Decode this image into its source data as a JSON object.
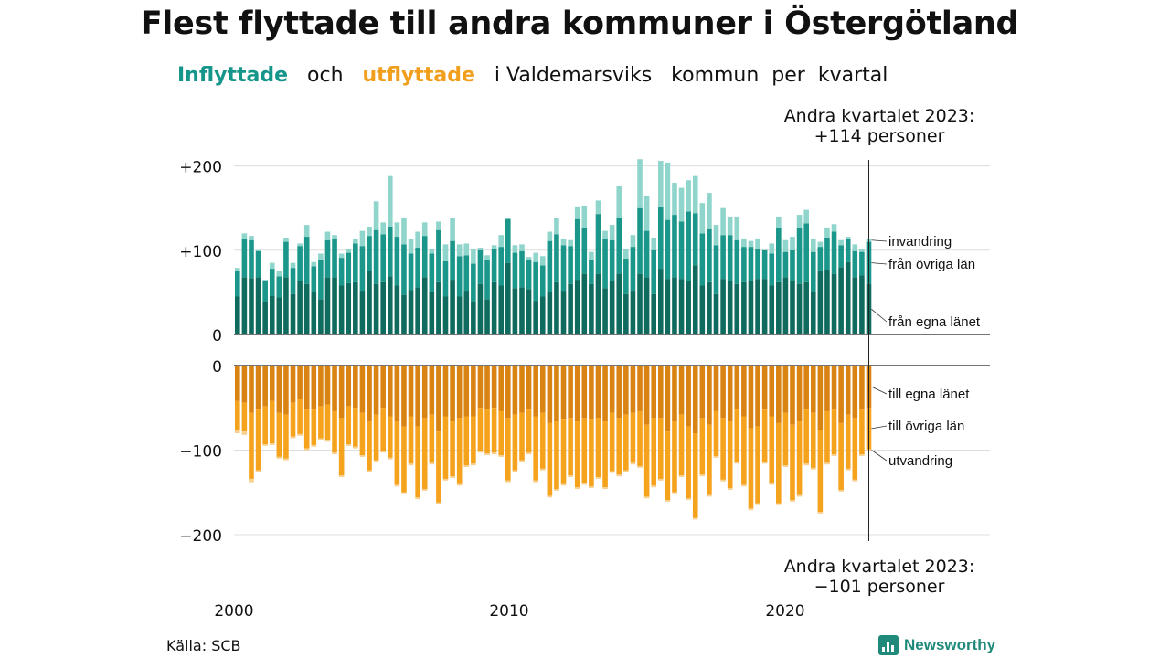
{
  "title": "Flest flyttade till andra kommuner i Östergötland",
  "subtitle": {
    "inflyttade": "Inflyttade",
    "och": "och",
    "utflyttade": "utflyttade",
    "rest": "i Valdemarsviks   kommun  per  kvartal"
  },
  "source": "Källa: SCB",
  "logo_text": "Newsworthy",
  "colors": {
    "in_egna": "#0e6b5e",
    "in_ovriga": "#1a968a",
    "in_invandring": "#8fd5cc",
    "out_egna": "#d98412",
    "out_ovriga": "#f5a21d",
    "out_utvandring": "#f8d08f"
  },
  "chart_data": {
    "type": "bar",
    "stacked": true,
    "x_unit": "kvartal",
    "x_start": "2000 Q1",
    "x_end": "2023 Q2",
    "x_ticks": [
      "2000",
      "2010",
      "2020"
    ],
    "ylim": [
      -220,
      220
    ],
    "grid": true,
    "top_ticks": [
      "+200",
      "+100",
      "0"
    ],
    "bottom_ticks": [
      "0",
      "−100",
      "−200"
    ],
    "annotation_top": [
      "Andra kvartalet 2023:",
      "+114 personer"
    ],
    "annotation_bottom": [
      "Andra kvartalet 2023:",
      "−101 personer"
    ],
    "series_labels_in": [
      "invandring",
      "från övriga län",
      "från egna länet"
    ],
    "series_labels_out": [
      "till egna länet",
      "till övriga län",
      "utvandring"
    ],
    "inflyttade": {
      "total": [
        79,
        120,
        117,
        100,
        65,
        85,
        76,
        115,
        85,
        108,
        130,
        86,
        96,
        122,
        118,
        96,
        101,
        113,
        123,
        128,
        158,
        133,
        188,
        133,
        138,
        113,
        122,
        133,
        102,
        134,
        107,
        138,
        107,
        108,
        102,
        103,
        94,
        106,
        118,
        138,
        106,
        107,
        92,
        97,
        93,
        122,
        138,
        113,
        112,
        152,
        153,
        98,
        159,
        123,
        130,
        176,
        102,
        118,
        208,
        165,
        115,
        206,
        204,
        180,
        174,
        183,
        188,
        156,
        168,
        130,
        150,
        140,
        140,
        114,
        111,
        114,
        97,
        108,
        140,
        112,
        116,
        142,
        148,
        114,
        110,
        127,
        131,
        112,
        116,
        107,
        101,
        114
      ],
      "egna": [
        45,
        68,
        67,
        68,
        38,
        46,
        44,
        68,
        48,
        64,
        60,
        50,
        42,
        68,
        68,
        58,
        61,
        62,
        52,
        75,
        60,
        62,
        69,
        58,
        47,
        53,
        56,
        68,
        51,
        62,
        45,
        65,
        45,
        52,
        38,
        60,
        42,
        62,
        58,
        85,
        55,
        56,
        54,
        40,
        45,
        50,
        62,
        52,
        60,
        65,
        72,
        60,
        72,
        55,
        64,
        72,
        48,
        52,
        72,
        68,
        48,
        78,
        66,
        68,
        66,
        64,
        82,
        58,
        62,
        48,
        66,
        64,
        60,
        62,
        64,
        66,
        66,
        58,
        62,
        68,
        64,
        60,
        62,
        50,
        76,
        77,
        72,
        80,
        86,
        68,
        70,
        60
      ],
      "ovriga": [
        31,
        46,
        45,
        31,
        25,
        32,
        25,
        42,
        31,
        41,
        56,
        31,
        47,
        44,
        46,
        33,
        36,
        46,
        53,
        42,
        64,
        57,
        59,
        58,
        60,
        43,
        47,
        49,
        45,
        62,
        42,
        46,
        48,
        42,
        46,
        40,
        46,
        40,
        46,
        52,
        42,
        43,
        35,
        46,
        37,
        61,
        57,
        54,
        45,
        72,
        54,
        28,
        71,
        58,
        48,
        66,
        42,
        52,
        78,
        55,
        52,
        74,
        70,
        74,
        68,
        82,
        62,
        62,
        63,
        58,
        52,
        54,
        52,
        42,
        40,
        36,
        34,
        38,
        64,
        30,
        36,
        66,
        70,
        48,
        28,
        38,
        50,
        26,
        28,
        31,
        28,
        50
      ]
    },
    "utflyttade": {
      "total": [
        80,
        82,
        138,
        126,
        95,
        94,
        110,
        112,
        86,
        83,
        100,
        96,
        88,
        90,
        105,
        132,
        95,
        98,
        108,
        126,
        114,
        103,
        111,
        143,
        152,
        118,
        158,
        148,
        117,
        164,
        136,
        133,
        142,
        120,
        118,
        103,
        106,
        105,
        108,
        138,
        126,
        114,
        105,
        138,
        124,
        156,
        148,
        142,
        132,
        146,
        141,
        145,
        134,
        146,
        127,
        131,
        126,
        117,
        121,
        157,
        144,
        136,
        161,
        152,
        132,
        159,
        182,
        131,
        155,
        109,
        137,
        147,
        116,
        143,
        171,
        165,
        116,
        141,
        165,
        120,
        161,
        155,
        118,
        123,
        175,
        117,
        107,
        149,
        124,
        137,
        107,
        101
      ],
      "egna": [
        42,
        44,
        56,
        52,
        48,
        42,
        56,
        58,
        44,
        40,
        52,
        52,
        48,
        46,
        54,
        62,
        48,
        50,
        56,
        66,
        58,
        50,
        60,
        66,
        72,
        60,
        72,
        62,
        58,
        78,
        60,
        66,
        62,
        60,
        60,
        50,
        52,
        50,
        54,
        62,
        58,
        56,
        52,
        60,
        56,
        68,
        66,
        64,
        62,
        66,
        62,
        64,
        62,
        66,
        56,
        62,
        58,
        56,
        54,
        70,
        62,
        62,
        78,
        66,
        58,
        72,
        80,
        62,
        70,
        54,
        62,
        66,
        52,
        60,
        74,
        72,
        52,
        60,
        68,
        56,
        70,
        66,
        52,
        56,
        76,
        54,
        52,
        68,
        58,
        62,
        52,
        50
      ],
      "ovriga": [
        34,
        34,
        78,
        72,
        45,
        50,
        52,
        52,
        40,
        41,
        46,
        42,
        38,
        42,
        49,
        68,
        45,
        46,
        50,
        58,
        54,
        51,
        49,
        75,
        78,
        56,
        84,
        84,
        57,
        84,
        74,
        65,
        78,
        58,
        56,
        51,
        52,
        53,
        52,
        74,
        66,
        56,
        51,
        76,
        66,
        86,
        80,
        76,
        68,
        78,
        77,
        79,
        70,
        78,
        69,
        67,
        66,
        59,
        65,
        85,
        80,
        72,
        81,
        84,
        72,
        85,
        100,
        67,
        83,
        53,
        73,
        79,
        62,
        81,
        95,
        91,
        62,
        79,
        95,
        62,
        89,
        87,
        64,
        65,
        97,
        61,
        53,
        79,
        64,
        73,
        53,
        49
      ]
    }
  }
}
